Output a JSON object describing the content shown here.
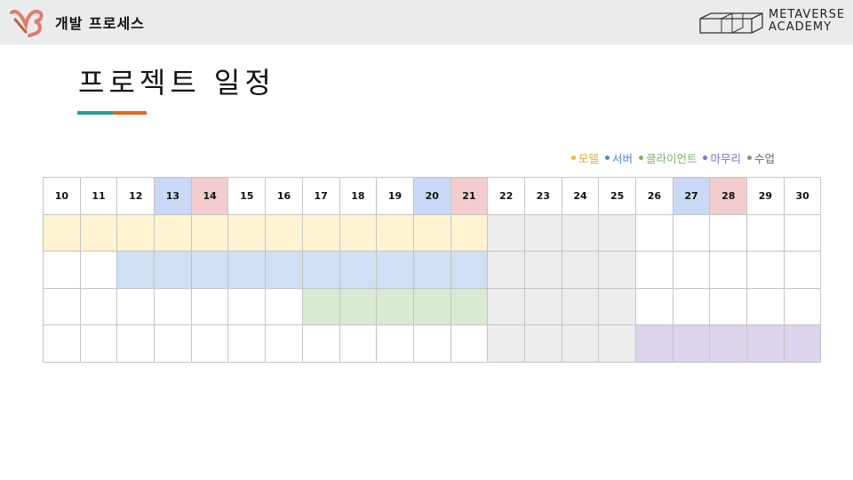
{
  "header": {
    "section_title": "개발 프로세스",
    "brand_line1": "METAVERSE",
    "brand_line2": "ACADEMY",
    "logo_icon": "v2-logo-icon",
    "brand_icon": "metaverse-cube-icon"
  },
  "page_title": "프로젝트 일정",
  "colors": {
    "underline_a": "#2a9d8f",
    "underline_b": "#e0681e",
    "model": "#fff3d1",
    "server": "#cfe0f4",
    "client": "#d8ead2",
    "wrapup": "#ddd3ec",
    "class": "#ececec",
    "empty": "#ffffff",
    "saturday": "#c9d9f5",
    "sunday": "#f3cdcd",
    "weekday": "#ffffff"
  },
  "legend": [
    {
      "label": "모델",
      "dot": "#f5b334",
      "text_color": "#e1a82b"
    },
    {
      "label": "서버",
      "dot": "#4f86d6",
      "text_color": "#4f86d6"
    },
    {
      "label": "클라이언트",
      "dot": "#7fb26a",
      "text_color": "#7fb26a"
    },
    {
      "label": "마무리",
      "dot": "#8a6dc7",
      "text_color": "#8a6dc7"
    },
    {
      "label": "수업",
      "dot": "#8c8c8c",
      "text_color": "#666666"
    }
  ],
  "days": [
    {
      "label": "10",
      "kind": "weekday"
    },
    {
      "label": "11",
      "kind": "weekday"
    },
    {
      "label": "12",
      "kind": "weekday"
    },
    {
      "label": "13",
      "kind": "saturday"
    },
    {
      "label": "14",
      "kind": "sunday"
    },
    {
      "label": "15",
      "kind": "weekday"
    },
    {
      "label": "16",
      "kind": "weekday"
    },
    {
      "label": "17",
      "kind": "weekday"
    },
    {
      "label": "18",
      "kind": "weekday"
    },
    {
      "label": "19",
      "kind": "weekday"
    },
    {
      "label": "20",
      "kind": "saturday"
    },
    {
      "label": "21",
      "kind": "sunday"
    },
    {
      "label": "22",
      "kind": "weekday"
    },
    {
      "label": "23",
      "kind": "weekday"
    },
    {
      "label": "24",
      "kind": "weekday"
    },
    {
      "label": "25",
      "kind": "weekday"
    },
    {
      "label": "26",
      "kind": "weekday"
    },
    {
      "label": "27",
      "kind": "saturday"
    },
    {
      "label": "28",
      "kind": "sunday"
    },
    {
      "label": "29",
      "kind": "weekday"
    },
    {
      "label": "30",
      "kind": "weekday"
    }
  ],
  "rows": [
    {
      "phase": "model",
      "cells": [
        "model",
        "model",
        "model",
        "model",
        "model",
        "model",
        "model",
        "model",
        "model",
        "model",
        "model",
        "model",
        "class",
        "class",
        "class",
        "class",
        "empty",
        "empty",
        "empty",
        "empty",
        "empty"
      ]
    },
    {
      "phase": "server",
      "cells": [
        "empty",
        "empty",
        "server",
        "server",
        "server",
        "server",
        "server",
        "server",
        "server",
        "server",
        "server",
        "server",
        "class",
        "class",
        "class",
        "class",
        "empty",
        "empty",
        "empty",
        "empty",
        "empty"
      ]
    },
    {
      "phase": "client",
      "cells": [
        "empty",
        "empty",
        "empty",
        "empty",
        "empty",
        "empty",
        "empty",
        "client",
        "client",
        "client",
        "client",
        "client",
        "class",
        "class",
        "class",
        "class",
        "empty",
        "empty",
        "empty",
        "empty",
        "empty"
      ]
    },
    {
      "phase": "wrapup",
      "cells": [
        "empty",
        "empty",
        "empty",
        "empty",
        "empty",
        "empty",
        "empty",
        "empty",
        "empty",
        "empty",
        "empty",
        "empty",
        "class",
        "class",
        "class",
        "class",
        "wrapup",
        "wrapup",
        "wrapup",
        "wrapup",
        "wrapup"
      ]
    }
  ]
}
